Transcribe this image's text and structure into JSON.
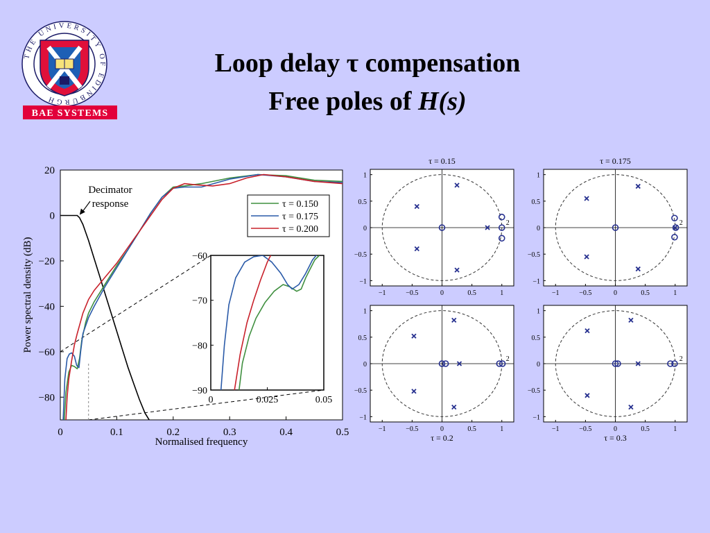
{
  "header": {
    "title_line1": "Loop delay τ compensation",
    "title_line2_prefix": "Free poles of ",
    "title_line2_italic": "H(s)"
  },
  "logo": {
    "ring_text": "THE UNIVERSITY OF EDINBURGH",
    "brand": "BAE SYSTEMS",
    "colors": {
      "ring": "#1a1a66",
      "shield_red": "#e0103a",
      "shield_blue": "#1d5fb5",
      "brand_red": "#e2003a"
    }
  },
  "colors": {
    "background": "#ccccff",
    "plot_bg": "#ffffff",
    "pz_marker": "#26308f"
  },
  "chart_data": [
    {
      "type": "line",
      "xlabel": "Normalised frequency",
      "ylabel": "Power spectral density (dB)",
      "xlim": [
        0,
        0.5
      ],
      "ylim": [
        -90,
        20
      ],
      "xticks": [
        0,
        0.1,
        0.2,
        0.3,
        0.4,
        0.5
      ],
      "xtick_labels": [
        "0",
        "0.1",
        "0.2",
        "0.3",
        "0.4",
        "0.5"
      ],
      "yticks": [
        20,
        0,
        -20,
        -40,
        -60,
        -80
      ],
      "ytick_labels": [
        "20",
        "0",
        "−20",
        "−40",
        "−60",
        "−80"
      ],
      "legend_position": "top-right",
      "annotation": {
        "text_line1": "Decimator",
        "text_line2": "response",
        "x": 0.033,
        "y": 0
      },
      "decimator": {
        "x": [
          0,
          0.03,
          0.034,
          0.04,
          0.05,
          0.06,
          0.07,
          0.08,
          0.09,
          0.1,
          0.11,
          0.12,
          0.13,
          0.14,
          0.15,
          0.16
        ],
        "y": [
          0,
          0,
          -1,
          -4,
          -11,
          -19,
          -27,
          -35,
          -43,
          -51,
          -59,
          -67,
          -74,
          -81,
          -87,
          -91
        ]
      },
      "series": [
        {
          "name": "τ = 0.150",
          "color": "#3f8f3f",
          "x": [
            0.007,
            0.01,
            0.015,
            0.02,
            0.025,
            0.03,
            0.034,
            0.038,
            0.045,
            0.05,
            0.06,
            0.07,
            0.08,
            0.1,
            0.12,
            0.14,
            0.16,
            0.18,
            0.2,
            0.22,
            0.25,
            0.3,
            0.35,
            0.4,
            0.45,
            0.5
          ],
          "y": [
            -90,
            -78,
            -69,
            -66,
            -66.5,
            -67.5,
            -63,
            -55,
            -47,
            -43,
            -38,
            -34,
            -30,
            -22,
            -15,
            -7,
            1,
            8,
            12.5,
            13,
            14,
            16.5,
            18,
            17.5,
            15.5,
            15
          ]
        },
        {
          "name": "τ = 0.175",
          "color": "#2a5aa8",
          "x": [
            0.005,
            0.008,
            0.012,
            0.016,
            0.02,
            0.025,
            0.029,
            0.033,
            0.036,
            0.04,
            0.05,
            0.06,
            0.08,
            0.1,
            0.12,
            0.14,
            0.16,
            0.18,
            0.2,
            0.22,
            0.25,
            0.3,
            0.35,
            0.4,
            0.45,
            0.5
          ],
          "y": [
            -90,
            -72,
            -63,
            -61,
            -60.5,
            -62,
            -66,
            -67,
            -60,
            -52,
            -45,
            -40,
            -31,
            -23,
            -15,
            -7,
            1,
            8,
            12,
            12.5,
            12.5,
            16,
            18,
            17,
            15,
            14.5
          ]
        },
        {
          "name": "τ = 0.200",
          "color": "#c8202a",
          "x": [
            0.01,
            0.012,
            0.015,
            0.02,
            0.025,
            0.03,
            0.04,
            0.05,
            0.06,
            0.08,
            0.1,
            0.12,
            0.14,
            0.16,
            0.18,
            0.2,
            0.22,
            0.24,
            0.27,
            0.3,
            0.33,
            0.36,
            0.4,
            0.45,
            0.5
          ],
          "y": [
            -90,
            -80,
            -72,
            -64,
            -57,
            -52,
            -43,
            -37,
            -33,
            -27,
            -21,
            -14,
            -7,
            0,
            7,
            12,
            14,
            13.5,
            13,
            14,
            16.5,
            18,
            17,
            15,
            14
          ]
        }
      ]
    },
    {
      "type": "line",
      "inset": true,
      "xlim": [
        0,
        0.05
      ],
      "ylim": [
        -90,
        -60
      ],
      "xticks": [
        0,
        0.025,
        0.05
      ],
      "xtick_labels": [
        "0",
        "0.025",
        "0.05"
      ],
      "yticks": [
        -60,
        -70,
        -80,
        -90
      ],
      "ytick_labels": [
        "−60",
        "−70",
        "−80",
        "−90"
      ],
      "series": [
        {
          "name": "τ = 0.150",
          "color": "#3f8f3f",
          "x": [
            0.0125,
            0.014,
            0.017,
            0.02,
            0.024,
            0.028,
            0.032,
            0.035,
            0.038,
            0.04,
            0.042,
            0.044,
            0.046,
            0.048
          ],
          "y": [
            -90,
            -84,
            -78,
            -74,
            -70.5,
            -68,
            -66.5,
            -67,
            -68,
            -67.5,
            -65,
            -63,
            -61,
            -60
          ]
        },
        {
          "name": "τ = 0.175",
          "color": "#2a5aa8",
          "x": [
            0.0045,
            0.006,
            0.008,
            0.011,
            0.015,
            0.019,
            0.023,
            0.027,
            0.031,
            0.034,
            0.036,
            0.039,
            0.042,
            0.045,
            0.047
          ],
          "y": [
            -90,
            -80,
            -71,
            -65,
            -61.5,
            -60.3,
            -60,
            -61.5,
            -64,
            -66.5,
            -67.5,
            -66.5,
            -64,
            -61,
            -59.8
          ]
        },
        {
          "name": "τ = 0.200",
          "color": "#c8202a",
          "x": [
            0.0105,
            0.013,
            0.016,
            0.019,
            0.022,
            0.025,
            0.027
          ],
          "y": [
            -90,
            -82,
            -75,
            -70,
            -65.5,
            -61.5,
            -59.5
          ]
        }
      ]
    },
    {
      "type": "scatter",
      "title": "τ = 0.15",
      "title_position": "top",
      "xlim": [
        -1.2,
        1.2
      ],
      "ylim": [
        -1.1,
        1.1
      ],
      "xticks": [
        -1,
        -0.5,
        0,
        0.5,
        1
      ],
      "xtick_labels": [
        "−1",
        "−0.5",
        "0",
        "0.5",
        "1"
      ],
      "yticks": [
        1,
        0.5,
        0,
        -0.5,
        -1
      ],
      "ytick_labels": [
        "1",
        "0.5",
        "0",
        "−0.5",
        "−1"
      ],
      "unit_circle": true,
      "poles": [
        [
          0.25,
          0.8
        ],
        [
          0.25,
          -0.8
        ],
        [
          -0.42,
          0.4
        ],
        [
          -0.42,
          -0.4
        ],
        [
          0.76,
          0
        ]
      ],
      "zeros": [
        [
          0,
          0
        ],
        [
          1,
          0.2
        ],
        [
          1,
          -0.2
        ],
        [
          1,
          0
        ]
      ],
      "multiplicity": [
        {
          "x": 1,
          "y": 0,
          "label": "2"
        }
      ]
    },
    {
      "type": "scatter",
      "title": "τ = 0.175",
      "title_position": "top",
      "xlim": [
        -1.2,
        1.2
      ],
      "ylim": [
        -1.1,
        1.1
      ],
      "xticks": [
        -1,
        -0.5,
        0,
        0.5,
        1
      ],
      "xtick_labels": [
        "−1",
        "−0.5",
        "0",
        "0.5",
        "1"
      ],
      "yticks": [
        1,
        0.5,
        0,
        -0.5,
        -1
      ],
      "ytick_labels": [
        "1",
        "0.5",
        "0",
        "−0.5",
        "−1"
      ],
      "unit_circle": true,
      "poles": [
        [
          0.38,
          0.78
        ],
        [
          0.38,
          -0.78
        ],
        [
          -0.48,
          0.55
        ],
        [
          -0.48,
          -0.55
        ],
        [
          1,
          0
        ]
      ],
      "zeros": [
        [
          0,
          0
        ],
        [
          0.99,
          0.18
        ],
        [
          0.99,
          -0.18
        ],
        [
          1.01,
          0
        ]
      ],
      "multiplicity": [
        {
          "x": 1,
          "y": 0,
          "label": "2"
        }
      ]
    },
    {
      "type": "scatter",
      "title": "τ = 0.2",
      "title_position": "bottom",
      "xlim": [
        -1.2,
        1.2
      ],
      "ylim": [
        -1.1,
        1.1
      ],
      "xticks": [
        -1,
        -0.5,
        0,
        0.5,
        1
      ],
      "xtick_labels": [
        "−1",
        "−0.5",
        "0",
        "0.5",
        "1"
      ],
      "yticks": [
        1,
        0.5,
        0,
        -0.5,
        -1
      ],
      "ytick_labels": [
        "1",
        "0.5",
        "0",
        "−0.5",
        "−1"
      ],
      "unit_circle": true,
      "poles": [
        [
          0.2,
          0.82
        ],
        [
          0.2,
          -0.82
        ],
        [
          -0.47,
          0.52
        ],
        [
          -0.47,
          -0.52
        ],
        [
          0.29,
          0
        ]
      ],
      "zeros": [
        [
          0,
          0
        ],
        [
          0.06,
          0
        ],
        [
          0.96,
          0
        ],
        [
          1.01,
          0
        ]
      ],
      "multiplicity": [
        {
          "x": 1,
          "y": 0,
          "label": "2"
        }
      ]
    },
    {
      "type": "scatter",
      "title": "τ = 0.3",
      "title_position": "bottom",
      "xlim": [
        -1.2,
        1.2
      ],
      "ylim": [
        -1.1,
        1.1
      ],
      "xticks": [
        -1,
        -0.5,
        0,
        0.5,
        1
      ],
      "xtick_labels": [
        "−1",
        "−0.5",
        "0",
        "0.5",
        "1"
      ],
      "yticks": [
        1,
        0.5,
        0,
        -0.5,
        -1
      ],
      "ytick_labels": [
        "1",
        "0.5",
        "0",
        "−0.5",
        "−1"
      ],
      "unit_circle": true,
      "poles": [
        [
          0.26,
          0.82
        ],
        [
          0.26,
          -0.82
        ],
        [
          -0.47,
          0.62
        ],
        [
          -0.47,
          -0.6
        ],
        [
          0.38,
          0
        ]
      ],
      "zeros": [
        [
          0,
          0
        ],
        [
          0.04,
          0
        ],
        [
          0.92,
          0
        ],
        [
          0.99,
          0
        ]
      ],
      "multiplicity": [
        {
          "x": 1,
          "y": 0,
          "label": "2"
        }
      ]
    }
  ]
}
